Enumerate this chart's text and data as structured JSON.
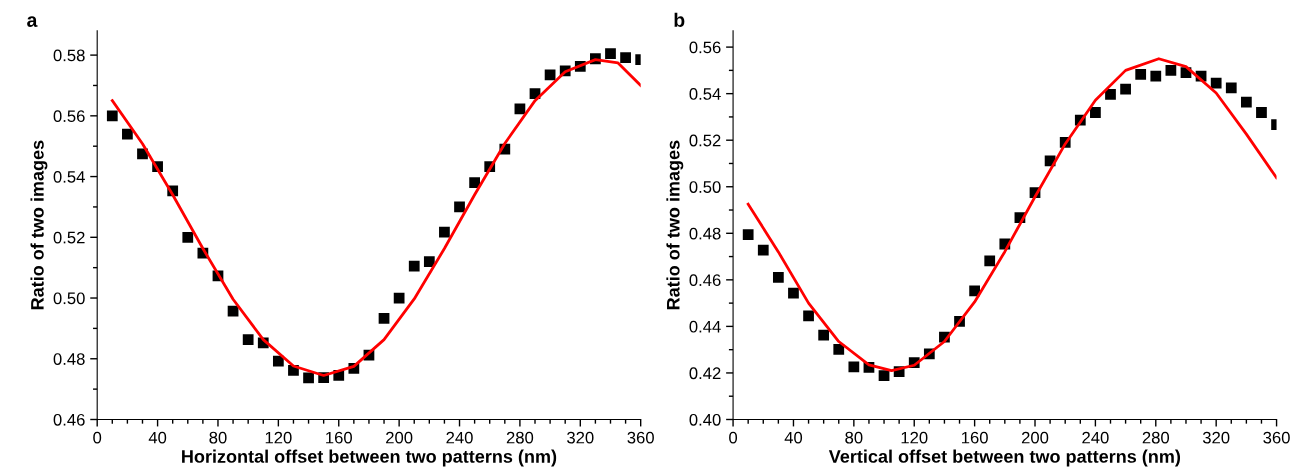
{
  "chart_data": [
    {
      "type": "scatter",
      "title": "a",
      "xlabel": "Horizontal offset between two patterns (nm)",
      "ylabel": "Ratio of two images",
      "xlim": [
        0,
        360
      ],
      "xticks": [
        0,
        40,
        80,
        120,
        160,
        200,
        240,
        280,
        320,
        360
      ],
      "ylim": [
        0.46,
        0.588
      ],
      "yticks": [
        {
          "value": 0.46,
          "label": "0.46"
        },
        {
          "value": 0.48,
          "label": "0.48"
        },
        {
          "value": 0.5,
          "label": "0.50"
        },
        {
          "value": 0.52,
          "label": "0.52"
        },
        {
          "value": 0.54,
          "label": "0.54"
        },
        {
          "value": 0.56,
          "label": "0.56"
        },
        {
          "value": 0.58,
          "label": "0.58"
        }
      ],
      "grid": false,
      "series": [
        {
          "marker": "square",
          "color": "#000000",
          "x": [
            10,
            20,
            30,
            40,
            50,
            60,
            70,
            80,
            90,
            100,
            110,
            120,
            130,
            140,
            150,
            160,
            170,
            180,
            190,
            200,
            210,
            220,
            230,
            240,
            250,
            260,
            270,
            280,
            290,
            300,
            310,
            320,
            330,
            340,
            350,
            360
          ],
          "values": [
            0.56,
            0.554,
            0.5475,
            0.5433,
            0.5353,
            0.52,
            0.5148,
            0.5073,
            0.4957,
            0.4863,
            0.4852,
            0.4792,
            0.4762,
            0.4737,
            0.4738,
            0.4745,
            0.4768,
            0.4812,
            0.4933,
            0.5,
            0.5105,
            0.512,
            0.5217,
            0.53,
            0.538,
            0.5433,
            0.549,
            0.5623,
            0.5673,
            0.5735,
            0.5748,
            0.5763,
            0.5788,
            0.5805,
            0.5792,
            0.5785
          ]
        },
        {
          "type": "line",
          "line_style": "solid",
          "color": "#ff0000",
          "x": [
            10,
            30,
            50,
            70,
            90,
            110,
            130,
            150,
            170,
            190,
            210,
            230,
            250,
            270,
            290,
            310,
            330,
            345,
            360
          ],
          "values": [
            0.565,
            0.5508,
            0.534,
            0.5163,
            0.4996,
            0.4863,
            0.4776,
            0.4745,
            0.4775,
            0.4863,
            0.4997,
            0.5163,
            0.534,
            0.5509,
            0.565,
            0.5745,
            0.5785,
            0.5774,
            0.57
          ]
        }
      ]
    },
    {
      "type": "scatter",
      "title": "b",
      "xlabel": "Vertical offset between two patterns (nm)",
      "ylabel": "Ratio of two images",
      "xlim": [
        0,
        360
      ],
      "xticks": [
        0,
        40,
        80,
        120,
        160,
        200,
        240,
        280,
        320,
        360
      ],
      "ylim": [
        0.4,
        0.567
      ],
      "yticks": [
        {
          "value": 0.4,
          "label": "0.40"
        },
        {
          "value": 0.42,
          "label": "0.42"
        },
        {
          "value": 0.44,
          "label": "0.44"
        },
        {
          "value": 0.46,
          "label": "0.46"
        },
        {
          "value": 0.48,
          "label": "0.48"
        },
        {
          "value": 0.5,
          "label": "0.50"
        },
        {
          "value": 0.52,
          "label": "0.52"
        },
        {
          "value": 0.54,
          "label": "0.54"
        },
        {
          "value": 0.56,
          "label": "0.56"
        }
      ],
      "grid": false,
      "series": [
        {
          "marker": "square",
          "color": "#000000",
          "x": [
            10,
            20,
            30,
            40,
            50,
            60,
            70,
            80,
            90,
            100,
            110,
            120,
            130,
            140,
            150,
            160,
            170,
            180,
            190,
            200,
            210,
            220,
            230,
            240,
            250,
            260,
            270,
            280,
            290,
            300,
            310,
            320,
            330,
            340,
            350,
            360
          ],
          "values": [
            0.4794,
            0.4728,
            0.4611,
            0.4543,
            0.4445,
            0.4362,
            0.4301,
            0.4226,
            0.4224,
            0.4188,
            0.4206,
            0.4244,
            0.4282,
            0.4354,
            0.4422,
            0.4553,
            0.4681,
            0.4754,
            0.4867,
            0.4975,
            0.5111,
            0.5191,
            0.5286,
            0.5319,
            0.5397,
            0.5419,
            0.5483,
            0.5475,
            0.55,
            0.549,
            0.5475,
            0.5445,
            0.5425,
            0.5364,
            0.5319,
            0.5267
          ]
        },
        {
          "type": "line",
          "line_style": "solid",
          "color": "#ff0000",
          "x": [
            10,
            30,
            50,
            70,
            90,
            105,
            120,
            140,
            160,
            180,
            200,
            220,
            240,
            260,
            282,
            300,
            320,
            340,
            360
          ],
          "values": [
            0.4925,
            0.472,
            0.45,
            0.4335,
            0.4235,
            0.421,
            0.4233,
            0.4335,
            0.4505,
            0.4721,
            0.4957,
            0.5184,
            0.5372,
            0.55,
            0.555,
            0.5516,
            0.5403,
            0.5226,
            0.5038
          ]
        }
      ]
    }
  ]
}
